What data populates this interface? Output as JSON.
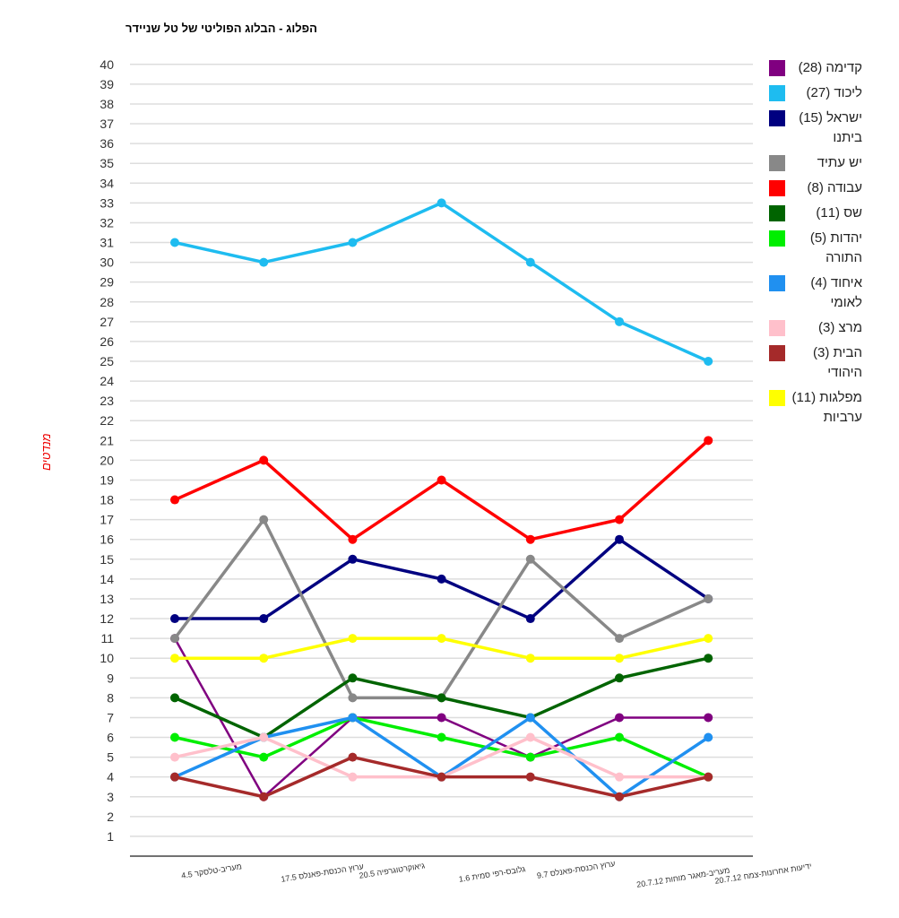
{
  "chart_data": {
    "type": "line",
    "title": "הפלוג - הבלוג הפוליטי של טל שניידר",
    "ylabel": "מנדטים",
    "xlabel": "",
    "ylim": [
      0,
      40
    ],
    "yticks": [
      1,
      2,
      3,
      4,
      5,
      6,
      7,
      8,
      9,
      10,
      11,
      12,
      13,
      14,
      15,
      16,
      17,
      18,
      19,
      20,
      21,
      22,
      23,
      24,
      25,
      26,
      27,
      28,
      29,
      30,
      31,
      32,
      33,
      34,
      35,
      36,
      37,
      38,
      39,
      40
    ],
    "grid": true,
    "legend_position": "right",
    "categories": [
      "מעריב-טלסקר 4.5",
      "ערוץ הכנסת-פאנלס 17.5",
      "גיאוקרטוגרפיה 20.5",
      "גלובס-רפי סמית 1.6",
      "ערוץ הכנסת-פאנלס 9.7",
      "מעריב-מאגר מוחות 20.7.12",
      "ידיעות אחרונות-צמח 20.7.12"
    ],
    "series": [
      {
        "name": "קדימה (28)",
        "color": "#800080",
        "values": [
          11,
          3,
          7,
          7,
          5,
          7,
          7
        ]
      },
      {
        "name": "ליכוד (27)",
        "color": "#1ebcf0",
        "values": [
          31,
          30,
          31,
          33,
          30,
          27,
          25
        ]
      },
      {
        "name": "ישראל (15) ביתנו",
        "color": "#000080",
        "values": [
          12,
          12,
          15,
          14,
          12,
          16,
          13
        ]
      },
      {
        "name": "יש עתיד",
        "color": "#888888",
        "values": [
          11,
          17,
          8,
          8,
          15,
          11,
          13
        ]
      },
      {
        "name": "עבודה (8)",
        "color": "#ff0000",
        "values": [
          18,
          20,
          16,
          19,
          16,
          17,
          21
        ]
      },
      {
        "name": "שס (11)",
        "color": "#006400",
        "values": [
          8,
          6,
          9,
          8,
          7,
          9,
          10
        ]
      },
      {
        "name": "יהדות (5) התורה",
        "color": "#00ee00",
        "values": [
          6,
          5,
          7,
          6,
          5,
          6,
          4
        ]
      },
      {
        "name": "איחוד (4) לאומי",
        "color": "#2090f0",
        "values": [
          4,
          6,
          7,
          4,
          7,
          3,
          6
        ]
      },
      {
        "name": "מרצ (3)",
        "color": "#ffc0cb",
        "values": [
          5,
          6,
          4,
          4,
          6,
          4,
          4
        ]
      },
      {
        "name": "הבית (3) היהודי",
        "color": "#a52a2a",
        "values": [
          4,
          3,
          5,
          4,
          4,
          3,
          4
        ]
      },
      {
        "name": "מפלגות (11) ערביות",
        "color": "#ffff00",
        "values": [
          10,
          10,
          11,
          11,
          10,
          10,
          11
        ]
      }
    ]
  }
}
